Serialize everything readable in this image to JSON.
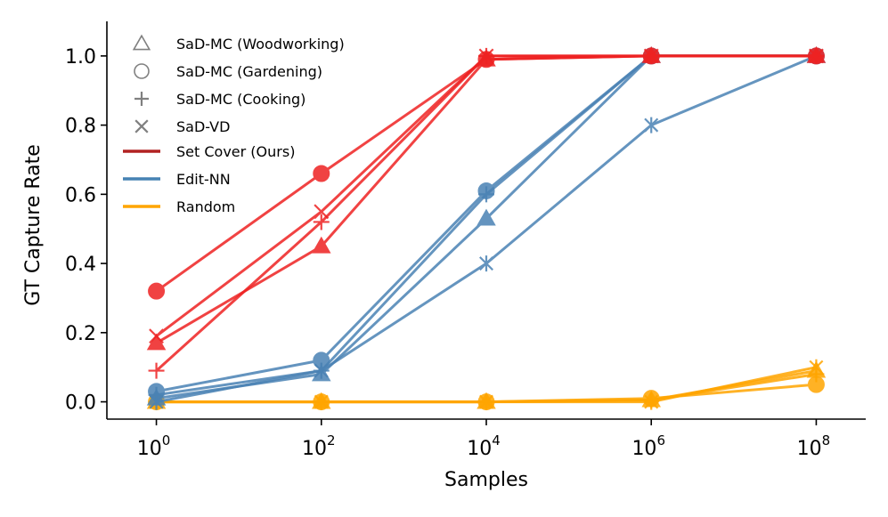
{
  "chart_data": {
    "type": "line",
    "title": "",
    "xlabel": "Samples",
    "ylabel": "GT Capture Rate",
    "xscale": "log10",
    "x_exponents": [
      0,
      2,
      4,
      6,
      8
    ],
    "x_tick_labels": [
      {
        "base": "10",
        "exp": "0"
      },
      {
        "base": "10",
        "exp": "2"
      },
      {
        "base": "10",
        "exp": "4"
      },
      {
        "base": "10",
        "exp": "6"
      },
      {
        "base": "10",
        "exp": "8"
      }
    ],
    "y_ticks": [
      "0.0",
      "0.2",
      "0.4",
      "0.6",
      "0.8",
      "1.0"
    ],
    "ylim": [
      -0.05,
      1.1
    ],
    "xlim": [
      -0.6,
      8.6
    ],
    "grid": false,
    "legend_position": "upper-left",
    "method_colors": {
      "Set Cover (Ours)": "#ee2222",
      "Edit-NN": "#4a82b4",
      "Random": "#ffa500"
    },
    "legend": {
      "markers": [
        {
          "label": "SaD-MC (Woodworking)",
          "marker": "triangle"
        },
        {
          "label": "SaD-MC (Gardening)",
          "marker": "circle"
        },
        {
          "label": "SaD-MC (Cooking)",
          "marker": "plus"
        },
        {
          "label": "SaD-VD",
          "marker": "x"
        }
      ],
      "methods": [
        {
          "label": "Set Cover (Ours)",
          "color": "#b22222"
        },
        {
          "label": "Edit-NN",
          "color": "#4682b4"
        },
        {
          "label": "Random",
          "color": "#ffa500"
        }
      ]
    },
    "series": [
      {
        "method": "Random",
        "dataset": "SaD-MC (Woodworking)",
        "marker": "triangle",
        "values": [
          0.0,
          0.0,
          0.0,
          0.005,
          0.09
        ]
      },
      {
        "method": "Random",
        "dataset": "SaD-MC (Gardening)",
        "marker": "circle",
        "values": [
          0.0,
          0.0,
          0.0,
          0.01,
          0.05
        ]
      },
      {
        "method": "Random",
        "dataset": "SaD-MC (Cooking)",
        "marker": "plus",
        "values": [
          0.0,
          0.0,
          0.0,
          0.005,
          0.08
        ]
      },
      {
        "method": "Random",
        "dataset": "SaD-VD",
        "marker": "asterisk",
        "values": [
          0.0,
          0.0,
          0.0,
          0.0,
          0.1
        ]
      },
      {
        "method": "Edit-NN",
        "dataset": "SaD-MC (Woodworking)",
        "marker": "triangle",
        "values": [
          0.01,
          0.08,
          0.53,
          1.0,
          1.0
        ]
      },
      {
        "method": "Edit-NN",
        "dataset": "SaD-MC (Gardening)",
        "marker": "circle",
        "values": [
          0.03,
          0.12,
          0.61,
          1.0,
          1.0
        ]
      },
      {
        "method": "Edit-NN",
        "dataset": "SaD-MC (Cooking)",
        "marker": "plus",
        "values": [
          0.02,
          0.09,
          0.6,
          1.0,
          1.0
        ]
      },
      {
        "method": "Edit-NN",
        "dataset": "SaD-VD",
        "marker": "asterisk",
        "values": [
          0.0,
          0.09,
          0.4,
          0.8,
          1.0
        ]
      },
      {
        "method": "Set Cover (Ours)",
        "dataset": "SaD-MC (Woodworking)",
        "marker": "triangle",
        "values": [
          0.17,
          0.45,
          0.99,
          1.0,
          1.0
        ]
      },
      {
        "method": "Set Cover (Ours)",
        "dataset": "SaD-MC (Gardening)",
        "marker": "circle",
        "values": [
          0.32,
          0.66,
          0.99,
          1.0,
          1.0
        ]
      },
      {
        "method": "Set Cover (Ours)",
        "dataset": "SaD-MC (Cooking)",
        "marker": "plus",
        "values": [
          0.09,
          0.52,
          1.0,
          1.0,
          1.0
        ]
      },
      {
        "method": "Set Cover (Ours)",
        "dataset": "SaD-VD",
        "marker": "x",
        "values": [
          0.19,
          0.55,
          1.0,
          1.0,
          1.0
        ]
      }
    ]
  }
}
